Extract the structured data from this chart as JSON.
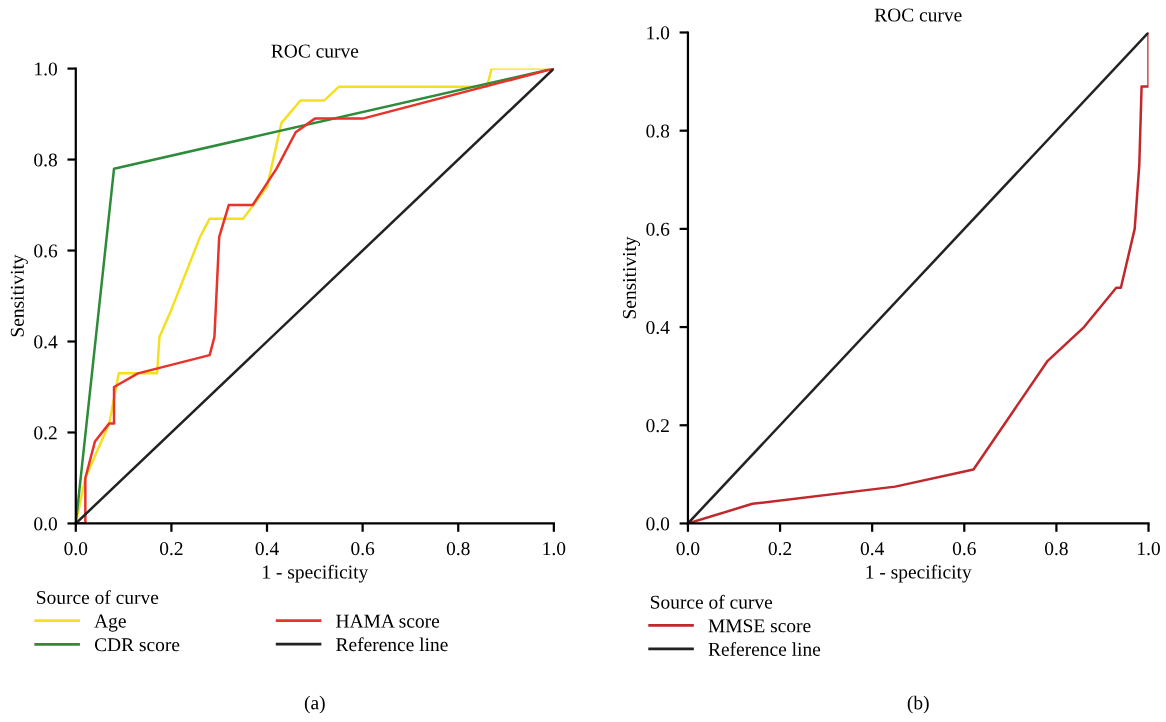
{
  "chart_data": [
    {
      "type": "line",
      "title": "ROC curve",
      "xlabel": "1 - specificity",
      "ylabel": "Sensitivity",
      "legend_title": "Source of curve",
      "legend": "bottom",
      "grid": false,
      "marker": "none",
      "line_style": "solid",
      "annotations": [
        "(a)"
      ],
      "xlim": [
        0,
        1
      ],
      "ylim": [
        0,
        1
      ],
      "xticks": [
        {
          "value": 0,
          "label": "0.0"
        },
        {
          "value": 0.2,
          "label": "0.2"
        },
        {
          "value": 0.4,
          "label": "0.4"
        },
        {
          "value": 0.6,
          "label": "0.6"
        },
        {
          "value": 0.8,
          "label": "0.8"
        },
        {
          "value": 1,
          "label": "1.0"
        }
      ],
      "yticks": [
        {
          "value": 0,
          "label": "0.0"
        },
        {
          "value": 0.2,
          "label": "0.2"
        },
        {
          "value": 0.4,
          "label": "0.4"
        },
        {
          "value": 0.6,
          "label": "0.6"
        },
        {
          "value": 0.8,
          "label": "0.8"
        },
        {
          "value": 1,
          "label": "1.0"
        }
      ],
      "series": [
        {
          "name": "Age",
          "color": "#f5e020",
          "x": [
            0,
            0.02,
            0.07,
            0.09,
            0.17,
            0.175,
            0.2,
            0.26,
            0.28,
            0.35,
            0.4,
            0.43,
            0.47,
            0.52,
            0.55,
            0.86,
            0.87,
            1
          ],
          "values": [
            0,
            0.1,
            0.22,
            0.33,
            0.33,
            0.41,
            0.47,
            0.63,
            0.67,
            0.67,
            0.74,
            0.88,
            0.93,
            0.93,
            0.96,
            0.96,
            1,
            1
          ]
        },
        {
          "name": "CDR score",
          "color": "#2e8b3a",
          "x": [
            0,
            0.08,
            1
          ],
          "values": [
            0,
            0.78,
            1
          ]
        },
        {
          "name": "HAMA score",
          "color": "#e8322a",
          "x": [
            0,
            0.02,
            0.02,
            0.04,
            0.07,
            0.08,
            0.08,
            0.13,
            0.28,
            0.29,
            0.3,
            0.32,
            0.37,
            0.42,
            0.46,
            0.5,
            0.6,
            1
          ],
          "values": [
            0,
            0,
            0.1,
            0.18,
            0.22,
            0.22,
            0.3,
            0.33,
            0.37,
            0.41,
            0.63,
            0.7,
            0.7,
            0.78,
            0.86,
            0.89,
            0.89,
            1
          ]
        },
        {
          "name": "Reference line",
          "color": "#222222",
          "x": [
            0,
            1
          ],
          "values": [
            0,
            1
          ]
        }
      ]
    },
    {
      "type": "line",
      "title": "ROC curve",
      "xlabel": "1 - specificity",
      "ylabel": "Sensitivity",
      "legend_title": "Source of curve",
      "legend": "bottom",
      "grid": false,
      "marker": "none",
      "line_style": "solid",
      "annotations": [
        "(b)"
      ],
      "xlim": [
        0,
        1
      ],
      "ylim": [
        0,
        1
      ],
      "xticks": [
        {
          "value": 0,
          "label": "0.0"
        },
        {
          "value": 0.2,
          "label": "0.2"
        },
        {
          "value": 0.4,
          "label": "0.4"
        },
        {
          "value": 0.6,
          "label": "0.6"
        },
        {
          "value": 0.8,
          "label": "0.8"
        },
        {
          "value": 1,
          "label": "1.0"
        }
      ],
      "yticks": [
        {
          "value": 0,
          "label": "0.0"
        },
        {
          "value": 0.2,
          "label": "0.2"
        },
        {
          "value": 0.4,
          "label": "0.4"
        },
        {
          "value": 0.6,
          "label": "0.6"
        },
        {
          "value": 0.8,
          "label": "0.8"
        },
        {
          "value": 1,
          "label": "1.0"
        }
      ],
      "series": [
        {
          "name": "MMSE score",
          "color": "#c0282c",
          "x": [
            0,
            0.14,
            0.45,
            0.62,
            0.78,
            0.86,
            0.93,
            0.94,
            0.97,
            0.98,
            0.985,
            1,
            1
          ],
          "values": [
            0,
            0.04,
            0.075,
            0.11,
            0.33,
            0.4,
            0.48,
            0.48,
            0.6,
            0.73,
            0.89,
            0.89,
            1
          ]
        },
        {
          "name": "Reference line",
          "color": "#222222",
          "x": [
            0,
            1
          ],
          "values": [
            0,
            1
          ]
        }
      ]
    }
  ]
}
